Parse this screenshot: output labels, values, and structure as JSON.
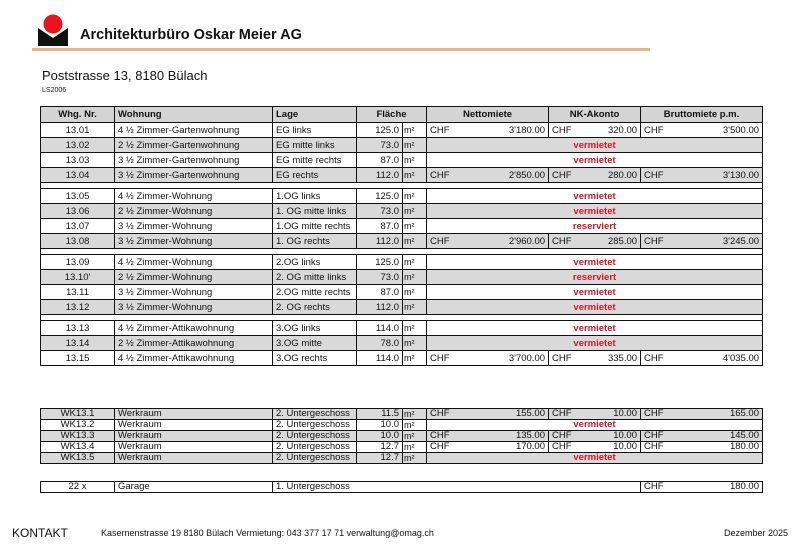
{
  "header": {
    "company": "Architekturbüro Oskar Meier AG",
    "address": "Poststrasse 13, 8180 Bülach",
    "code": "LS2006",
    "colors": {
      "logo_red": "#e8141c",
      "rule": "#e0b88e",
      "status_red": "#d0192b"
    }
  },
  "table": {
    "columns": {
      "nr": "Whg. Nr.",
      "wohnung": "Wohnung",
      "lage": "Lage",
      "flaeche": "Fläche",
      "netto": "Nettomiete",
      "nk": "NK-Akonto",
      "brutto": "Bruttomiete p.m."
    },
    "unit": "m²",
    "currency": "CHF",
    "groups": [
      [
        {
          "nr": "13.01",
          "wohnung": "4 ½ Zimmer-Gartenwohnung",
          "lage": "EG links",
          "flaeche": "125.0",
          "netto": "3'180.00",
          "nk": "320.00",
          "brutto": "3'500.00"
        },
        {
          "nr": "13.02",
          "wohnung": "2 ½ Zimmer-Gartenwohnung",
          "lage": "EG mitte links",
          "flaeche": "73.0",
          "status": "vermietet"
        },
        {
          "nr": "13.03",
          "wohnung": "3 ½ Zimmer-Gartenwohnung",
          "lage": "EG mitte rechts",
          "flaeche": "87.0",
          "status": "vermietet"
        },
        {
          "nr": "13.04",
          "wohnung": "3 ½ Zimmer-Gartenwohnung",
          "lage": "EG rechts",
          "flaeche": "112.0",
          "netto": "2'850.00",
          "nk": "280.00",
          "brutto": "3'130.00"
        }
      ],
      [
        {
          "nr": "13.05",
          "wohnung": "4 ½ Zimmer-Wohnung",
          "lage": "1.OG  links",
          "flaeche": "125.0",
          "status": "vermietet"
        },
        {
          "nr": "13.06",
          "wohnung": "2 ½ Zimmer-Wohnung",
          "lage": "1. OG mitte links",
          "flaeche": "73.0",
          "status": "vermietet"
        },
        {
          "nr": "13.07",
          "wohnung": "3 ½ Zimmer-Wohnung",
          "lage": "1.OG mitte rechts",
          "flaeche": "87.0",
          "status": "reserviert"
        },
        {
          "nr": "13.08",
          "wohnung": "3 ½ Zimmer-Wohnung",
          "lage": "1. OG rechts",
          "flaeche": "112.0",
          "netto": "2'960.00",
          "nk": "285.00",
          "brutto": "3'245.00"
        }
      ],
      [
        {
          "nr": "13.09",
          "wohnung": "4 ½ Zimmer-Wohnung",
          "lage": "2.OG  links",
          "flaeche": "125.0",
          "status": "vermietet"
        },
        {
          "nr": "13.10'",
          "wohnung": "2 ½ Zimmer-Wohnung",
          "lage": "2. OG mitte links",
          "flaeche": "73.0",
          "status": "reserviert"
        },
        {
          "nr": "13.11",
          "wohnung": "3 ½ Zimmer-Wohnung",
          "lage": "2.OG mitte rechts",
          "flaeche": "87.0",
          "status": "vermietet"
        },
        {
          "nr": "13.12",
          "wohnung": "3 ½ Zimmer-Wohnung",
          "lage": "2. OG rechts",
          "flaeche": "112.0",
          "status": "vermietet"
        }
      ],
      [
        {
          "nr": "13.13",
          "wohnung": "4 ½ Zimmer-Attikawohnung",
          "lage": "3.OG  links",
          "flaeche": "114.0",
          "status": "vermietet"
        },
        {
          "nr": "13.14",
          "wohnung": "2 ½ Zimmer-Attikawohnung",
          "lage": "3.OG  mitte",
          "flaeche": "78.0",
          "status": "vermietet"
        },
        {
          "nr": "13.15",
          "wohnung": "4 ½ Zimmer-Attikawohnung",
          "lage": "3.OG  rechts",
          "flaeche": "114.0",
          "netto": "3'700.00",
          "nk": "335.00",
          "brutto": "4'035.00"
        }
      ]
    ],
    "werkraum": [
      {
        "nr": "WK13.1",
        "wohnung": "Werkraum",
        "lage": "2. Untergeschoss",
        "flaeche": "11.5",
        "netto": "155.00",
        "nk": "10.00",
        "brutto": "165.00"
      },
      {
        "nr": "WK13.2",
        "wohnung": "Werkraum",
        "lage": "2. Untergeschoss",
        "flaeche": "10.0",
        "status": "vermietet"
      },
      {
        "nr": "WK13.3",
        "wohnung": "Werkraum",
        "lage": "2. Untergeschoss",
        "flaeche": "10.0",
        "netto": "135.00",
        "nk": "10.00",
        "brutto": "145.00"
      },
      {
        "nr": "WK13.4",
        "wohnung": "Werkraum",
        "lage": "2. Untergeschoss",
        "flaeche": "12.7",
        "netto": "170.00",
        "nk": "10.00",
        "brutto": "180.00"
      },
      {
        "nr": "WK13.5",
        "wohnung": "Werkraum",
        "lage": "2. Untergeschoss",
        "flaeche": "12.7",
        "status": "vermietet"
      }
    ],
    "garage": {
      "nr": "22 x",
      "wohnung": "Garage",
      "lage": "1. Untergeschoss",
      "brutto": "180.00"
    }
  },
  "footer": {
    "label": "KONTAKT",
    "contact": "Kasernenstrasse 19  8180 Bülach  Vermietung: 043 377 17 71  verwaltung@omag.ch",
    "date": "Dezember 2025"
  }
}
